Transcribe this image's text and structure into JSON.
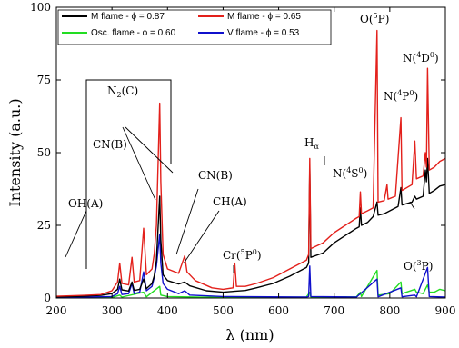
{
  "chart_data": {
    "type": "line",
    "xlabel": "λ (nm)",
    "ylabel": "Intensity (a.u.)",
    "xlim": [
      200,
      900
    ],
    "ylim": [
      0,
      100
    ],
    "x_ticks": [
      200,
      300,
      400,
      500,
      600,
      700,
      800,
      900
    ],
    "y_ticks": [
      0,
      25,
      50,
      75,
      100
    ],
    "legend_position": "top",
    "series": [
      {
        "name": "M flame - ϕ = 0.87",
        "color": "#000000",
        "points": [
          [
            200,
            0.4
          ],
          [
            250,
            0.6
          ],
          [
            280,
            0.9
          ],
          [
            300,
            1.5
          ],
          [
            310,
            3.0
          ],
          [
            314,
            6.5
          ],
          [
            318,
            2.8
          ],
          [
            330,
            2.4
          ],
          [
            336,
            5.5
          ],
          [
            340,
            2.6
          ],
          [
            350,
            3.0
          ],
          [
            357,
            6.5
          ],
          [
            362,
            3.2
          ],
          [
            372,
            5.0
          ],
          [
            376,
            7.5
          ],
          [
            380,
            13.0
          ],
          [
            386,
            35.0
          ],
          [
            388,
            20.0
          ],
          [
            392,
            8.0
          ],
          [
            400,
            6.0
          ],
          [
            420,
            4.8
          ],
          [
            431,
            5.5
          ],
          [
            440,
            4.2
          ],
          [
            470,
            2.5
          ],
          [
            500,
            2.0
          ],
          [
            520,
            2.3
          ],
          [
            540,
            2.6
          ],
          [
            560,
            3.5
          ],
          [
            590,
            5.0
          ],
          [
            620,
            7.5
          ],
          [
            650,
            10.5
          ],
          [
            654,
            12.0
          ],
          [
            656,
            45.0
          ],
          [
            658,
            14.0
          ],
          [
            680,
            15.5
          ],
          [
            700,
            19.0
          ],
          [
            720,
            21.5
          ],
          [
            740,
            24.0
          ],
          [
            745,
            24.5
          ],
          [
            747,
            31.0
          ],
          [
            749,
            25.0
          ],
          [
            760,
            26.0
          ],
          [
            770,
            28.0
          ],
          [
            777,
            33.0
          ],
          [
            779,
            28.5
          ],
          [
            790,
            29.0
          ],
          [
            800,
            30.0
          ],
          [
            815,
            31.5
          ],
          [
            820,
            38.0
          ],
          [
            822,
            32.0
          ],
          [
            840,
            33.0
          ],
          [
            845,
            35.0
          ],
          [
            848,
            34.0
          ],
          [
            860,
            35.0
          ],
          [
            864,
            44.0
          ],
          [
            866,
            40.0
          ],
          [
            868,
            48.0
          ],
          [
            871,
            36.0
          ],
          [
            880,
            37.0
          ],
          [
            890,
            38.5
          ],
          [
            900,
            39.0
          ]
        ]
      },
      {
        "name": "M flame - ϕ = 0.65",
        "color": "#e3201b",
        "points": [
          [
            200,
            0.6
          ],
          [
            250,
            0.9
          ],
          [
            280,
            1.2
          ],
          [
            300,
            2.5
          ],
          [
            310,
            5.5
          ],
          [
            314,
            12.0
          ],
          [
            318,
            5.0
          ],
          [
            330,
            4.5
          ],
          [
            336,
            14.0
          ],
          [
            340,
            5.5
          ],
          [
            350,
            6.0
          ],
          [
            357,
            24.0
          ],
          [
            362,
            8.0
          ],
          [
            372,
            10.0
          ],
          [
            376,
            15.0
          ],
          [
            380,
            25.0
          ],
          [
            386,
            67.0
          ],
          [
            388,
            40.0
          ],
          [
            392,
            15.0
          ],
          [
            400,
            10.0
          ],
          [
            420,
            8.5
          ],
          [
            431,
            14.5
          ],
          [
            435,
            9.0
          ],
          [
            450,
            6.0
          ],
          [
            480,
            3.5
          ],
          [
            500,
            3.0
          ],
          [
            518,
            3.5
          ],
          [
            521,
            12.0
          ],
          [
            524,
            4.0
          ],
          [
            540,
            4.0
          ],
          [
            560,
            5.0
          ],
          [
            590,
            7.0
          ],
          [
            620,
            10.0
          ],
          [
            650,
            13.0
          ],
          [
            654,
            15.0
          ],
          [
            656,
            48.0
          ],
          [
            658,
            17.0
          ],
          [
            680,
            19.0
          ],
          [
            700,
            22.5
          ],
          [
            720,
            25.0
          ],
          [
            740,
            27.5
          ],
          [
            745,
            28.0
          ],
          [
            747,
            36.5
          ],
          [
            749,
            29.0
          ],
          [
            760,
            30.0
          ],
          [
            770,
            31.0
          ],
          [
            777,
            92.0
          ],
          [
            779,
            33.0
          ],
          [
            790,
            33.5
          ],
          [
            795,
            39.0
          ],
          [
            797,
            34.0
          ],
          [
            810,
            35.0
          ],
          [
            820,
            62.0
          ],
          [
            822,
            37.0
          ],
          [
            840,
            39.0
          ],
          [
            845,
            54.0
          ],
          [
            848,
            41.0
          ],
          [
            860,
            42.0
          ],
          [
            864,
            50.0
          ],
          [
            866,
            45.0
          ],
          [
            868,
            79.0
          ],
          [
            871,
            44.0
          ],
          [
            880,
            45.0
          ],
          [
            890,
            47.0
          ],
          [
            900,
            48.0
          ]
        ]
      },
      {
        "name": "Osc. flame - ϕ = 0.60",
        "color": "#22dd22",
        "points": [
          [
            200,
            0.1
          ],
          [
            300,
            0.2
          ],
          [
            314,
            1.0
          ],
          [
            318,
            0.3
          ],
          [
            357,
            2.0
          ],
          [
            362,
            0.4
          ],
          [
            386,
            4.0
          ],
          [
            388,
            1.0
          ],
          [
            400,
            0.5
          ],
          [
            500,
            0.2
          ],
          [
            650,
            0.3
          ],
          [
            656,
            2.0
          ],
          [
            658,
            0.3
          ],
          [
            740,
            0.4
          ],
          [
            747,
            2.0
          ],
          [
            749,
            0.5
          ],
          [
            777,
            9.5
          ],
          [
            779,
            1.0
          ],
          [
            800,
            1.5
          ],
          [
            820,
            5.5
          ],
          [
            822,
            1.5
          ],
          [
            845,
            3.0
          ],
          [
            848,
            2.0
          ],
          [
            860,
            1.5
          ],
          [
            868,
            4.5
          ],
          [
            871,
            2.0
          ],
          [
            880,
            2.0
          ],
          [
            890,
            3.0
          ],
          [
            900,
            2.5
          ]
        ]
      },
      {
        "name": "V flame - ϕ = 0.53",
        "color": "#1010cc",
        "points": [
          [
            200,
            0.2
          ],
          [
            300,
            0.5
          ],
          [
            310,
            1.5
          ],
          [
            314,
            4.0
          ],
          [
            318,
            1.2
          ],
          [
            330,
            1.5
          ],
          [
            336,
            5.0
          ],
          [
            340,
            1.5
          ],
          [
            350,
            2.0
          ],
          [
            357,
            9.0
          ],
          [
            362,
            2.5
          ],
          [
            372,
            4.0
          ],
          [
            376,
            7.0
          ],
          [
            380,
            11.0
          ],
          [
            386,
            22.0
          ],
          [
            388,
            12.0
          ],
          [
            392,
            5.0
          ],
          [
            400,
            3.0
          ],
          [
            420,
            1.5
          ],
          [
            431,
            2.5
          ],
          [
            440,
            1.0
          ],
          [
            500,
            0.5
          ],
          [
            650,
            0.3
          ],
          [
            654,
            0.5
          ],
          [
            656,
            11.0
          ],
          [
            658,
            0.5
          ],
          [
            740,
            0.3
          ],
          [
            777,
            6.5
          ],
          [
            779,
            0.4
          ],
          [
            820,
            3.5
          ],
          [
            822,
            0.4
          ],
          [
            845,
            1.0
          ],
          [
            848,
            0.4
          ],
          [
            868,
            10.5
          ],
          [
            871,
            0.5
          ],
          [
            900,
            0.3
          ]
        ]
      }
    ],
    "annotations": [
      {
        "main": "N",
        "sub": "2",
        "tail": "(C)"
      },
      {
        "main": "CN(B)"
      },
      {
        "main": "OH(A)"
      },
      {
        "main": "CN(B)"
      },
      {
        "main": "CH(A)"
      },
      {
        "main": "Cr(",
        "sup": "5",
        "mid": "P",
        "sup2": "0",
        "tail": ")"
      },
      {
        "main": "H",
        "sub": "α"
      },
      {
        "main": "N(",
        "sup": "4",
        "mid": "S",
        "sup2": "0",
        "tail": ")"
      },
      {
        "main": "O(",
        "sup": "5",
        "mid": "P",
        "tail": ")"
      },
      {
        "main": "N(",
        "sup": "4",
        "mid": "P",
        "sup2": "0",
        "tail": ")"
      },
      {
        "main": "N(",
        "sup": "4",
        "mid": "D",
        "sup2": "0",
        "tail": ")"
      },
      {
        "main": "O(",
        "sup": "3",
        "mid": "P",
        "tail": ")"
      }
    ]
  }
}
